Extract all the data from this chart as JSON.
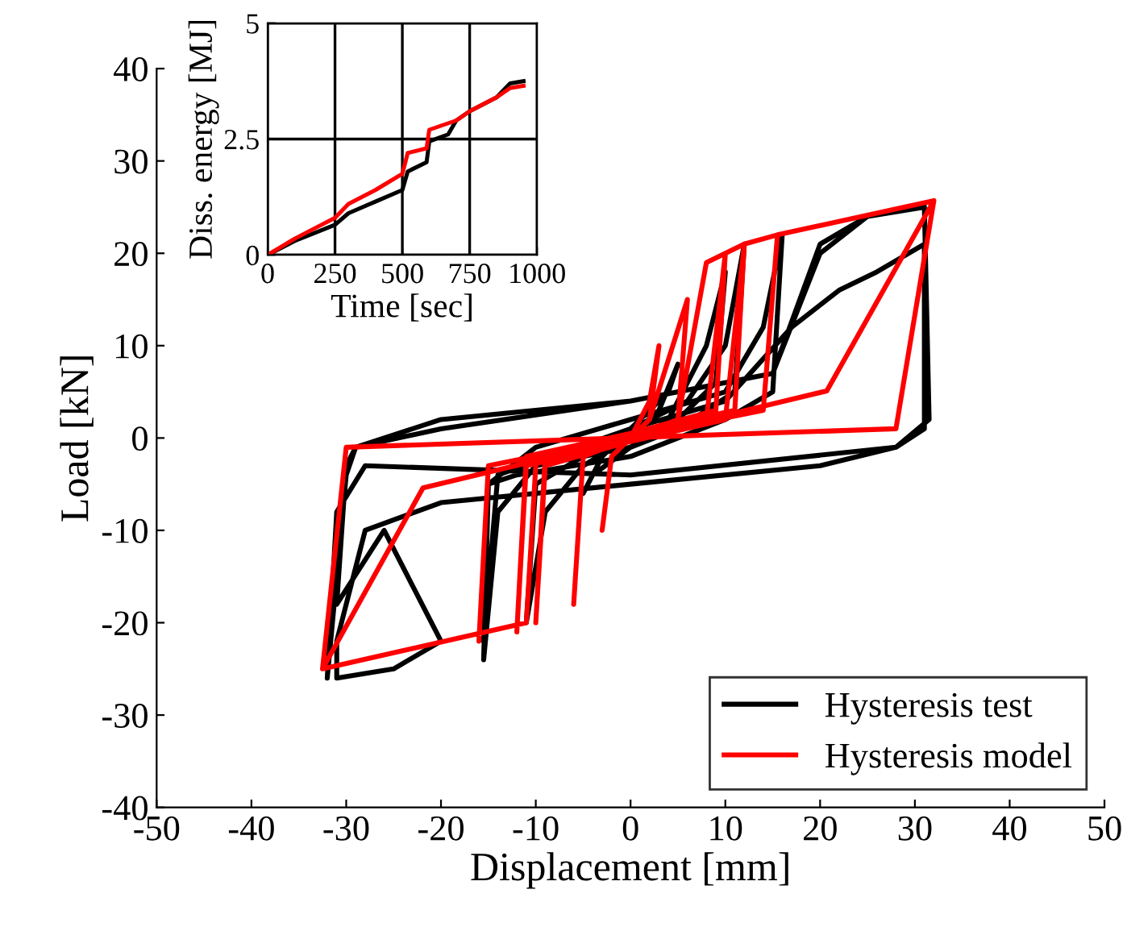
{
  "chart_data": [
    {
      "type": "line",
      "xlabel": "Displacement [mm]",
      "ylabel": "Load [kN]",
      "xlim": [
        -50,
        50
      ],
      "ylim": [
        -40,
        40
      ],
      "xticks": [
        -50,
        -40,
        -30,
        -20,
        -10,
        0,
        10,
        20,
        30,
        40,
        50
      ],
      "yticks": [
        -40,
        -30,
        -20,
        -10,
        0,
        10,
        20,
        30,
        40
      ],
      "grid": false,
      "legend": "bottom right",
      "line_style": "solid",
      "marker": "none",
      "series": [
        {
          "name": "Hysteresis test",
          "color": "#000000",
          "x": [
            0,
            3,
            5,
            4,
            0,
            -3,
            -5,
            -4,
            0,
            4,
            8,
            10,
            9,
            5,
            0,
            -5,
            -9,
            -11,
            -10,
            -5,
            0,
            6,
            10,
            12,
            11,
            5,
            0,
            -10,
            -14,
            -15.5,
            -15,
            -10,
            0,
            10,
            14,
            16,
            15,
            10,
            0,
            -12,
            -15,
            -15.5,
            -14,
            0,
            10,
            17,
            22,
            26,
            31,
            31,
            28,
            20,
            0,
            -20,
            -28,
            -31,
            -31,
            -25,
            -20,
            -26,
            -31,
            -30,
            -29,
            -20,
            0,
            15,
            20,
            25,
            31,
            31.5,
            28,
            0,
            -28,
            -31,
            -32,
            -30,
            -29,
            -20,
            0,
            15,
            20,
            25,
            31
          ],
          "values": [
            0,
            3,
            8,
            5,
            1,
            -2,
            -6,
            -4,
            -1,
            2,
            10,
            18,
            6,
            2,
            0,
            -3,
            -8,
            -20,
            -5,
            -2,
            1,
            4,
            10,
            21,
            5,
            1,
            -1,
            -3,
            -8,
            -24,
            -5,
            -1,
            2,
            5,
            12,
            22,
            5,
            2,
            -2,
            -4,
            -5,
            -22,
            -4,
            1,
            4,
            12,
            16,
            18,
            21,
            1,
            -1,
            -3,
            -5,
            -7,
            -10,
            -22,
            -26,
            -25,
            -22,
            -10,
            -18,
            -3,
            -1,
            1,
            4,
            7,
            20,
            24,
            25,
            2,
            -1,
            -4,
            -3,
            -8,
            -26,
            -4,
            -1,
            2,
            4,
            7,
            21,
            24,
            25
          ]
        },
        {
          "name": "Hysteresis model",
          "color": "#ff0000",
          "x": [
            0,
            2,
            3,
            2,
            -2,
            -3,
            -2,
            2,
            6,
            5,
            -5,
            -6,
            -5,
            5,
            8,
            10,
            9,
            -9,
            -10,
            -9,
            8,
            10,
            12,
            11,
            -11,
            -12,
            -11,
            10,
            12,
            15.5,
            14,
            -15,
            -16,
            -15,
            14,
            15.5,
            32,
            28,
            -30,
            -32.5,
            -21.9,
            20.7,
            32,
            28,
            -30,
            -32.5,
            -11,
            -10
          ],
          "values": [
            0,
            4,
            10,
            2,
            -2,
            -10,
            -2,
            2,
            15,
            2,
            -2,
            -18,
            -2,
            2,
            19,
            20,
            3,
            -2,
            -20,
            -3,
            2,
            20,
            21,
            3,
            -2,
            -21,
            -3,
            2,
            21,
            22,
            3,
            -3,
            -22,
            -3,
            3,
            22,
            25.7,
            1,
            -1,
            -25,
            -5.4,
            5.1,
            25.7,
            1,
            -1,
            -25,
            -20,
            -3
          ]
        }
      ]
    },
    {
      "type": "line",
      "xlabel": "Time [sec]",
      "ylabel": "Diss. energy [MJ]",
      "xlim": [
        0,
        1000
      ],
      "ylim": [
        0,
        5
      ],
      "xticks": [
        0,
        250,
        500,
        750,
        1000
      ],
      "yticks": [
        0,
        2.5,
        5
      ],
      "grid": true,
      "line_style": "solid",
      "marker": "none",
      "series": [
        {
          "color": "#000000",
          "x": [
            0,
            100,
            250,
            300,
            400,
            500,
            520,
            590,
            600,
            670,
            700,
            750,
            850,
            900,
            950
          ],
          "values": [
            0,
            0.3,
            0.65,
            0.9,
            1.15,
            1.4,
            1.8,
            2.0,
            2.45,
            2.6,
            2.9,
            3.1,
            3.4,
            3.7,
            3.75
          ]
        },
        {
          "color": "#ff0000",
          "x": [
            0,
            100,
            250,
            300,
            400,
            500,
            520,
            590,
            600,
            700,
            750,
            850,
            900,
            950
          ],
          "values": [
            0,
            0.35,
            0.8,
            1.1,
            1.4,
            1.75,
            2.2,
            2.3,
            2.7,
            2.9,
            3.1,
            3.4,
            3.6,
            3.65
          ]
        }
      ]
    }
  ]
}
